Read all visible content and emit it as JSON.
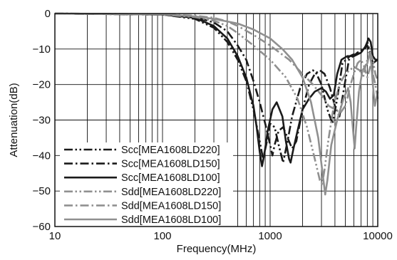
{
  "chart_data": {
    "type": "line",
    "xlabel": "Frequency(MHz)",
    "ylabel": "Attenuation(dB)",
    "x_scale": "log",
    "xlim": [
      10,
      10000
    ],
    "ylim": [
      -60,
      0
    ],
    "x_ticks": [
      10,
      100,
      1000,
      10000
    ],
    "x_tick_labels": [
      "10",
      "100",
      "1000",
      "10000"
    ],
    "y_ticks": [
      0,
      -10,
      -20,
      -30,
      -40,
      -50,
      -60
    ],
    "y_tick_labels": [
      "0",
      "−10",
      "−20",
      "−30",
      "−40",
      "−50",
      "−60"
    ],
    "grid": "vertical log minor and major lines, horizontal major lines",
    "legend_position": "bottom-left",
    "series": [
      {
        "name": "Scc[MEA1608LD220]",
        "color": "#1a1a1a",
        "dash": "dash-dot-dot",
        "points": [
          [
            10,
            0
          ],
          [
            100,
            -0.3
          ],
          [
            200,
            -1.5
          ],
          [
            300,
            -4
          ],
          [
            400,
            -8
          ],
          [
            500,
            -13
          ],
          [
            600,
            -19
          ],
          [
            700,
            -27
          ],
          [
            800,
            -36
          ],
          [
            860,
            -41
          ],
          [
            920,
            -37
          ],
          [
            1000,
            -31
          ],
          [
            1100,
            -32
          ],
          [
            1200,
            -37
          ],
          [
            1320,
            -42
          ],
          [
            1450,
            -36
          ],
          [
            1600,
            -29
          ],
          [
            1900,
            -21
          ],
          [
            2200,
            -17
          ],
          [
            2500,
            -16
          ],
          [
            2700,
            -17
          ],
          [
            3000,
            -20
          ],
          [
            3400,
            -27
          ],
          [
            3800,
            -31
          ],
          [
            4200,
            -24
          ],
          [
            4700,
            -14
          ],
          [
            5500,
            -12
          ],
          [
            6500,
            -11
          ],
          [
            7500,
            -10
          ],
          [
            8000,
            -9
          ],
          [
            8500,
            -12
          ],
          [
            9000,
            -14
          ],
          [
            10000,
            -13
          ]
        ]
      },
      {
        "name": "Scc[MEA1608LD150]",
        "color": "#1a1a1a",
        "dash": "dash-dot",
        "points": [
          [
            10,
            0
          ],
          [
            100,
            -0.3
          ],
          [
            200,
            -1
          ],
          [
            300,
            -2.5
          ],
          [
            400,
            -5
          ],
          [
            500,
            -9
          ],
          [
            600,
            -13
          ],
          [
            700,
            -19
          ],
          [
            800,
            -25
          ],
          [
            900,
            -31
          ],
          [
            1000,
            -37
          ],
          [
            1050,
            -40
          ],
          [
            1100,
            -37
          ],
          [
            1200,
            -33
          ],
          [
            1320,
            -32
          ],
          [
            1450,
            -35
          ],
          [
            1600,
            -38
          ],
          [
            1750,
            -36
          ],
          [
            2000,
            -27
          ],
          [
            2300,
            -20
          ],
          [
            2600,
            -17
          ],
          [
            2900,
            -16
          ],
          [
            3200,
            -17
          ],
          [
            3600,
            -21
          ],
          [
            4000,
            -26
          ],
          [
            4400,
            -29
          ],
          [
            4800,
            -22
          ],
          [
            5400,
            -13
          ],
          [
            6500,
            -11
          ],
          [
            7500,
            -10
          ],
          [
            8000,
            -8
          ],
          [
            8500,
            -11
          ],
          [
            9000,
            -13
          ],
          [
            10000,
            -13
          ]
        ]
      },
      {
        "name": "Scc[MEA1608LD100]",
        "color": "#1a1a1a",
        "dash": "solid",
        "points": [
          [
            10,
            0
          ],
          [
            100,
            -0.3
          ],
          [
            200,
            -1.2
          ],
          [
            300,
            -3.5
          ],
          [
            400,
            -7
          ],
          [
            500,
            -12
          ],
          [
            600,
            -18
          ],
          [
            700,
            -26
          ],
          [
            750,
            -32
          ],
          [
            800,
            -39
          ],
          [
            840,
            -43
          ],
          [
            880,
            -40
          ],
          [
            950,
            -33
          ],
          [
            1050,
            -27
          ],
          [
            1150,
            -25
          ],
          [
            1300,
            -29
          ],
          [
            1400,
            -36
          ],
          [
            1500,
            -41
          ],
          [
            1550,
            -42
          ],
          [
            1650,
            -38
          ],
          [
            1800,
            -33
          ],
          [
            2000,
            -27
          ],
          [
            2300,
            -24
          ],
          [
            2600,
            -22
          ],
          [
            3000,
            -21
          ],
          [
            3300,
            -22
          ],
          [
            3600,
            -24
          ],
          [
            3900,
            -23
          ],
          [
            4200,
            -17
          ],
          [
            4600,
            -13
          ],
          [
            5200,
            -12
          ],
          [
            6000,
            -12
          ],
          [
            7000,
            -11
          ],
          [
            7800,
            -9
          ],
          [
            8200,
            -7
          ],
          [
            8600,
            -8
          ],
          [
            9000,
            -12
          ],
          [
            9500,
            -13
          ],
          [
            10000,
            -13
          ]
        ]
      },
      {
        "name": "Sdd[MEA1608LD220]",
        "color": "#909090",
        "dash": "dash-dot-dot",
        "points": [
          [
            10,
            0
          ],
          [
            100,
            -0.3
          ],
          [
            200,
            -1
          ],
          [
            300,
            -2
          ],
          [
            400,
            -3.5
          ],
          [
            500,
            -5.5
          ],
          [
            700,
            -9
          ],
          [
            1000,
            -13
          ],
          [
            1400,
            -18
          ],
          [
            1800,
            -24
          ],
          [
            2200,
            -32
          ],
          [
            2600,
            -41
          ],
          [
            2900,
            -47
          ],
          [
            3050,
            -48
          ],
          [
            3200,
            -44
          ],
          [
            3500,
            -35
          ],
          [
            3900,
            -26
          ],
          [
            4400,
            -20
          ],
          [
            5000,
            -17
          ],
          [
            6000,
            -15
          ],
          [
            6800,
            -16
          ],
          [
            7300,
            -18
          ],
          [
            7800,
            -14
          ],
          [
            8500,
            -11
          ],
          [
            9000,
            -13
          ],
          [
            9500,
            -17
          ],
          [
            10000,
            -19
          ]
        ]
      },
      {
        "name": "Sdd[MEA1608LD150]",
        "color": "#909090",
        "dash": "dash-dot",
        "points": [
          [
            10,
            0
          ],
          [
            100,
            -0.2
          ],
          [
            200,
            -0.6
          ],
          [
            300,
            -1.2
          ],
          [
            400,
            -2.2
          ],
          [
            500,
            -3.5
          ],
          [
            700,
            -6
          ],
          [
            1000,
            -9
          ],
          [
            1500,
            -13
          ],
          [
            2000,
            -17
          ],
          [
            2500,
            -20
          ],
          [
            3000,
            -23
          ],
          [
            3500,
            -26
          ],
          [
            4000,
            -27
          ],
          [
            4500,
            -28
          ],
          [
            5000,
            -26
          ],
          [
            5600,
            -20
          ],
          [
            6000,
            -17
          ],
          [
            6500,
            -14
          ],
          [
            7000,
            -13
          ],
          [
            7500,
            -15
          ],
          [
            8000,
            -18
          ],
          [
            8500,
            -15
          ],
          [
            9000,
            -17
          ],
          [
            9500,
            -20
          ],
          [
            10000,
            -24
          ]
        ]
      },
      {
        "name": "Sdd[MEA1608LD100]",
        "color": "#909090",
        "dash": "solid",
        "points": [
          [
            10,
            0
          ],
          [
            100,
            -0.2
          ],
          [
            200,
            -0.8
          ],
          [
            300,
            -1.5
          ],
          [
            500,
            -2.8
          ],
          [
            700,
            -4.5
          ],
          [
            1000,
            -7
          ],
          [
            1300,
            -10
          ],
          [
            1600,
            -13
          ],
          [
            2000,
            -18
          ],
          [
            2400,
            -25
          ],
          [
            2800,
            -35
          ],
          [
            3100,
            -46
          ],
          [
            3250,
            -51
          ],
          [
            3400,
            -47
          ],
          [
            3700,
            -37
          ],
          [
            4200,
            -30
          ],
          [
            4800,
            -24
          ],
          [
            5300,
            -21
          ],
          [
            5600,
            -25
          ],
          [
            5900,
            -33
          ],
          [
            6100,
            -38
          ],
          [
            6300,
            -32
          ],
          [
            6700,
            -22
          ],
          [
            7200,
            -16
          ],
          [
            7600,
            -15
          ],
          [
            8000,
            -14
          ],
          [
            8400,
            -11
          ],
          [
            8700,
            -14
          ],
          [
            9000,
            -20
          ],
          [
            9400,
            -26
          ],
          [
            10000,
            -22
          ]
        ]
      }
    ]
  }
}
